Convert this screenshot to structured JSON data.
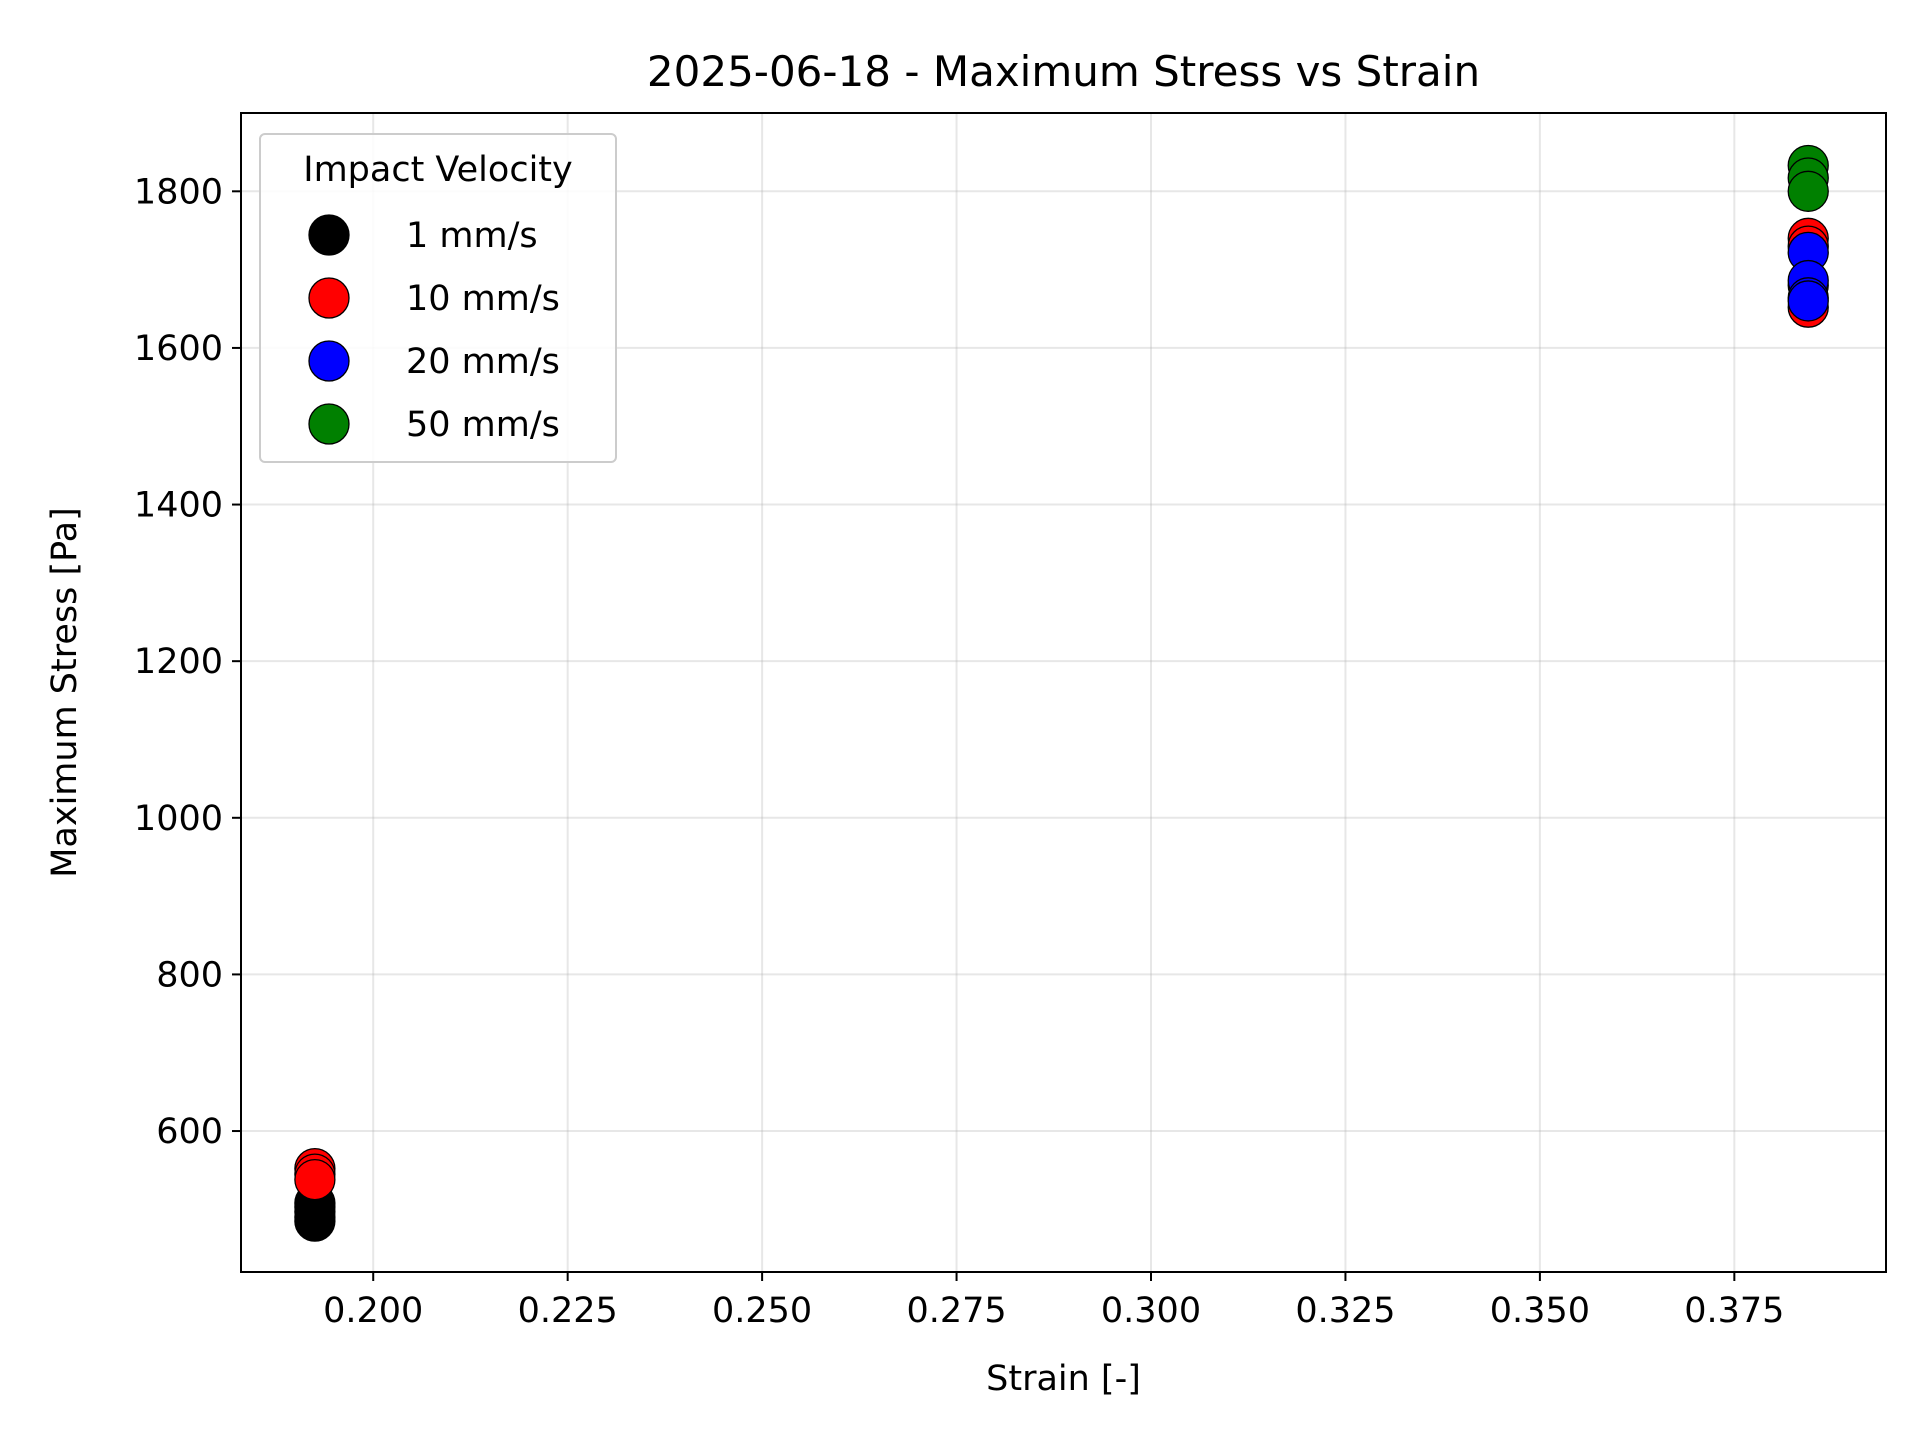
{
  "chart_data": {
    "type": "scatter",
    "title": "2025-06-18 - Maximum Stress vs Strain",
    "xlabel": "Strain [-]",
    "ylabel": "Maximum Stress [Pa]",
    "xlim": [
      0.183,
      0.3945
    ],
    "ylim": [
      420,
      1900
    ],
    "xticks": [
      0.2,
      0.225,
      0.25,
      0.275,
      0.3,
      0.325,
      0.35,
      0.375
    ],
    "xtick_labels": [
      "0.200",
      "0.225",
      "0.250",
      "0.275",
      "0.300",
      "0.325",
      "0.350",
      "0.375"
    ],
    "yticks": [
      600,
      800,
      1000,
      1200,
      1400,
      1600,
      1800
    ],
    "ytick_labels": [
      "600",
      "800",
      "1000",
      "1200",
      "1400",
      "1600",
      "1800"
    ],
    "grid": true,
    "legend": {
      "title": "Impact Velocity",
      "placement": "top-left"
    },
    "series": [
      {
        "name": "1 mm/s",
        "color": "#000000",
        "points": [
          [
            0.1925,
            485
          ],
          [
            0.1925,
            490
          ],
          [
            0.1925,
            497
          ],
          [
            0.1925,
            503
          ],
          [
            0.1925,
            508
          ]
        ]
      },
      {
        "name": "10 mm/s",
        "color": "#ff0000",
        "points": [
          [
            0.1925,
            552
          ],
          [
            0.1925,
            545
          ],
          [
            0.1925,
            538
          ],
          [
            0.3845,
            1740
          ],
          [
            0.3845,
            1730
          ],
          [
            0.3845,
            1680
          ],
          [
            0.3845,
            1652
          ]
        ]
      },
      {
        "name": "20 mm/s",
        "color": "#0000ff",
        "points": [
          [
            0.3845,
            1722
          ],
          [
            0.3845,
            1686
          ],
          [
            0.3845,
            1664
          ],
          [
            0.3845,
            1660
          ]
        ]
      },
      {
        "name": "50 mm/s",
        "color": "#008000",
        "points": [
          [
            0.3845,
            1833
          ],
          [
            0.3845,
            1817
          ],
          [
            0.3845,
            1800
          ]
        ]
      }
    ]
  }
}
